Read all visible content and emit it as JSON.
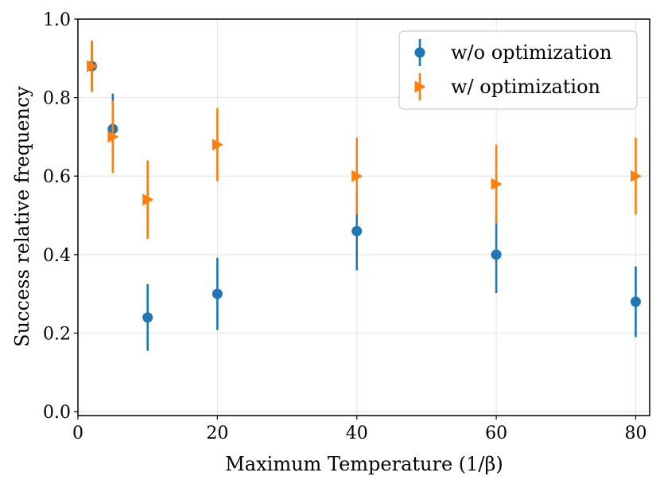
{
  "chart_data": {
    "type": "scatter",
    "title": "",
    "xlabel": "Maximum Temperature (1/β)",
    "ylabel": "Success relative frequency",
    "xlim": [
      0,
      82
    ],
    "ylim": [
      -0.01,
      1.0
    ],
    "xticks": [
      0,
      20,
      40,
      60,
      80
    ],
    "xtick_labels": [
      "0",
      "20",
      "40",
      "60",
      "80"
    ],
    "yticks": [
      0.0,
      0.2,
      0.4,
      0.6,
      0.8,
      1.0
    ],
    "ytick_labels": [
      "0.0",
      "0.2",
      "0.4",
      "0.6",
      "0.8",
      "1.0"
    ],
    "grid": true,
    "legend_position": "top-right",
    "series": [
      {
        "name": "w/o optimization",
        "color": "#1f77b4",
        "marker": "circle",
        "x": [
          2,
          5,
          10,
          20,
          40,
          60,
          80
        ],
        "y": [
          0.88,
          0.72,
          0.24,
          0.3,
          0.46,
          0.4,
          0.28
        ],
        "yerr": [
          0.065,
          0.09,
          0.085,
          0.092,
          0.1,
          0.098,
          0.09
        ]
      },
      {
        "name": "w/ optimization",
        "color": "#ff7f0e",
        "marker": "triangle-right",
        "x": [
          2,
          5,
          10,
          20,
          40,
          60,
          80
        ],
        "y": [
          0.88,
          0.7,
          0.54,
          0.68,
          0.6,
          0.58,
          0.6
        ],
        "yerr": [
          0.065,
          0.092,
          0.1,
          0.093,
          0.098,
          0.1,
          0.098
        ]
      }
    ]
  }
}
